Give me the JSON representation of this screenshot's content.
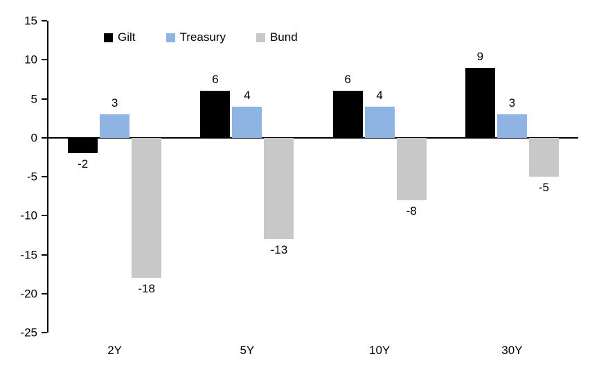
{
  "chart_data": {
    "type": "bar",
    "title": "",
    "xlabel": "",
    "ylabel": "",
    "categories": [
      "2Y",
      "5Y",
      "10Y",
      "30Y"
    ],
    "series": [
      {
        "name": "Gilt",
        "color": "#000000",
        "values": [
          -2,
          6,
          6,
          9
        ]
      },
      {
        "name": "Treasury",
        "color": "#8DB4E2",
        "values": [
          3,
          4,
          4,
          3
        ]
      },
      {
        "name": "Bund",
        "color": "#C8C8C8",
        "values": [
          -18,
          -13,
          -8,
          -5
        ]
      }
    ],
    "data_labels": true,
    "ylim": [
      -25,
      15
    ],
    "yticks": [
      15,
      10,
      5,
      0,
      -5,
      -10,
      -15,
      -20,
      -25
    ],
    "grid": false,
    "legend_position": "top-inside",
    "axis_color": "#000000",
    "background": "#FFFFFF"
  }
}
